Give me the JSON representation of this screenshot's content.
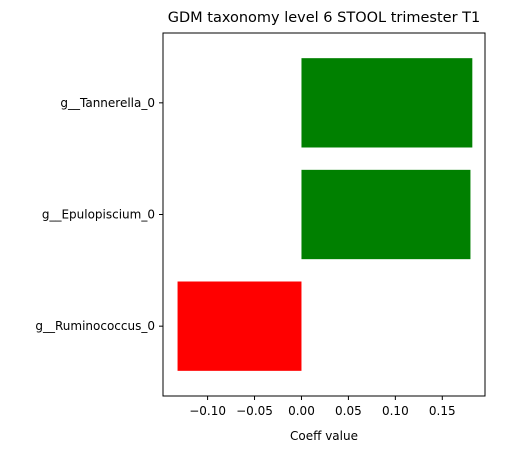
{
  "chart_data": {
    "type": "bar",
    "orientation": "horizontal",
    "title": "GDM taxonomy level 6 STOOL trimester T1",
    "xlabel": "Coeff value",
    "ylabel": "",
    "categories": [
      "g__Tannerella_0",
      "g__Epulopiscium_0",
      "g__Ruminococcus_0"
    ],
    "values": [
      0.182,
      0.18,
      -0.132
    ],
    "bar_colors": [
      "#008000",
      "#008000",
      "#ff0000"
    ],
    "xlim": [
      -0.1475,
      0.1955
    ],
    "xticks": [
      -0.1,
      -0.05,
      0.0,
      0.05,
      0.1,
      0.15
    ],
    "xtick_labels": [
      "−0.10",
      "−0.05",
      "0.00",
      "0.05",
      "0.10",
      "0.15"
    ],
    "grid": false,
    "legend": "none"
  }
}
